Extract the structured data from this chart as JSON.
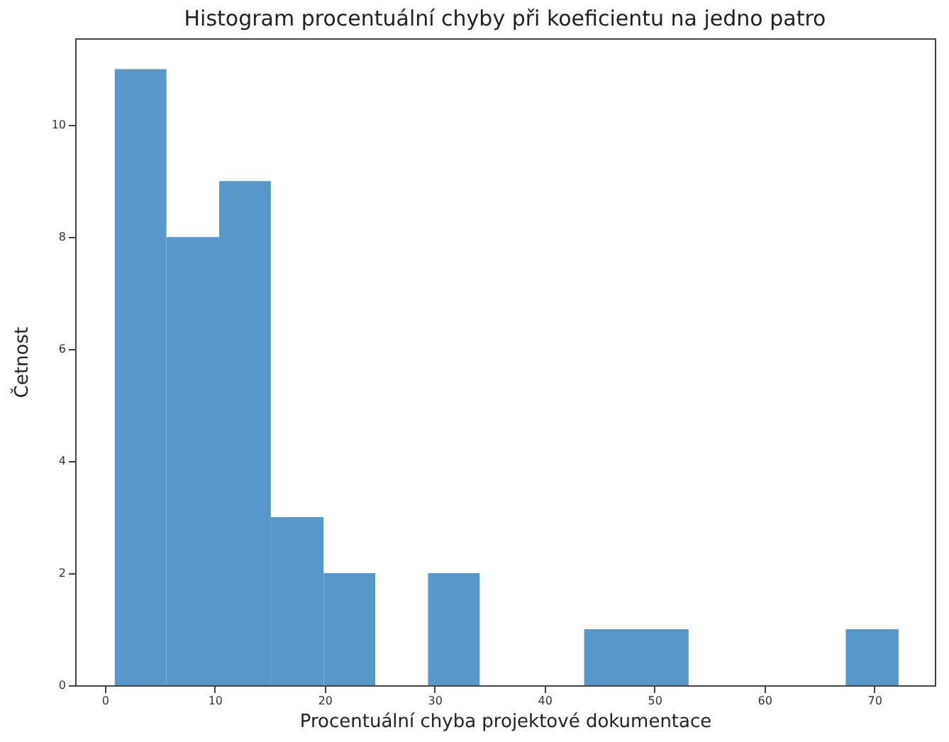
{
  "chart_data": {
    "type": "histogram",
    "title": "Histogram procentuální chyby při koeficientu na jedno patro",
    "xlabel": "Procentuální chyba projektové dokumentace",
    "ylabel": "Četnost",
    "bins": [
      0.9,
      5.6,
      10.4,
      15.1,
      19.9,
      24.6,
      29.4,
      34.1,
      43.6,
      48.4,
      53.1,
      67.4,
      72.2
    ],
    "values": [
      11,
      8,
      9,
      3,
      2,
      0,
      2,
      0,
      1,
      1,
      0,
      1
    ],
    "color": "#5797c9",
    "xlim": [
      -2.7,
      75.5
    ],
    "ylim": [
      0,
      11.55
    ],
    "xticks": [
      0,
      10,
      20,
      30,
      40,
      50,
      60,
      70
    ],
    "yticks": [
      0,
      2,
      4,
      6,
      8,
      10
    ],
    "grid": false
  }
}
